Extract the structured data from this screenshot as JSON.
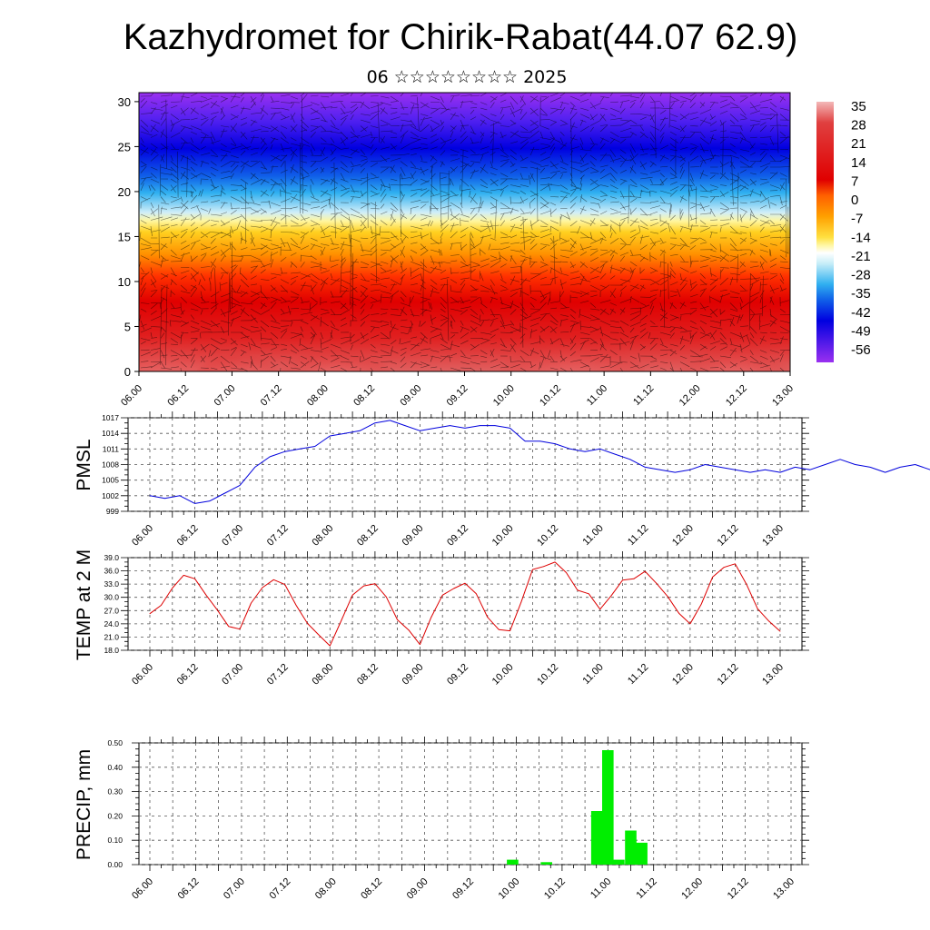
{
  "header": {
    "title": "Kazhydromet for Chirik-Rabat(44.07 62.9)",
    "subtitle": "06 ☆☆☆☆☆☆☆☆ 2025"
  },
  "colors": {
    "pmsl_line": "#0000dd",
    "temp_line": "#dd0000",
    "precip_bar": "#00ee00"
  },
  "x_tick_labels": [
    "06.00",
    "06.12",
    "07.00",
    "07.12",
    "08.00",
    "08.12",
    "09.00",
    "09.12",
    "10.00",
    "10.12",
    "11.00",
    "11.12",
    "12.00",
    "12.12",
    "13.00"
  ],
  "chart_data": [
    {
      "type": "heatmap",
      "ylim": [
        0,
        31
      ],
      "y_ticks": [
        "0",
        "5",
        "10",
        "15",
        "20",
        "25",
        "30"
      ],
      "colorbar": {
        "labels": [
          "35",
          "28",
          "21",
          "14",
          "7",
          "0",
          "-7",
          "-14",
          "-21",
          "-28",
          "-35",
          "-42",
          "-49",
          "-56"
        ]
      }
    },
    {
      "type": "line",
      "ylabel": "PMSL",
      "ylim": [
        999,
        1017
      ],
      "y_ticks": [
        "1017",
        "1014",
        "1011",
        "1008",
        "1005",
        "1002",
        "999"
      ],
      "x_steps": 3,
      "values": [
        1002,
        1001.5,
        1002,
        1000.5,
        1001,
        1002.5,
        1004,
        1007.5,
        1009.5,
        1010.5,
        1011,
        1011.5,
        1013.5,
        1014,
        1014.5,
        1016,
        1016.5,
        1015.5,
        1014.5,
        1015,
        1015.5,
        1015,
        1015.5,
        1015.5,
        1015,
        1012.5,
        1012.5,
        1012,
        1011,
        1010.5,
        1011,
        1010,
        1009,
        1007.5,
        1007,
        1006.5,
        1007,
        1008,
        1007.5,
        1007,
        1006.5,
        1007,
        1006.5,
        1007.5,
        1007,
        1008,
        1009,
        1008,
        1007.5,
        1006.5,
        1007.5,
        1008,
        1007,
        1007
      ]
    },
    {
      "type": "line",
      "ylabel": "TEMP at 2 M",
      "ylim": [
        18,
        39
      ],
      "y_ticks": [
        "39.0",
        "36.0",
        "33.0",
        "30.0",
        "27.0",
        "24.0",
        "21.0",
        "18.0"
      ],
      "values": [
        26.3,
        28.2,
        32.1,
        35,
        34.2,
        30.5,
        27.1,
        23.4,
        22.8,
        28.7,
        32.2,
        34,
        32.9,
        28.2,
        24.1,
        21.5,
        19,
        24.7,
        30.5,
        32.6,
        33.1,
        30.1,
        24.9,
        22.6,
        19.3,
        25.5,
        30.5,
        32,
        33.2,
        30.8,
        25.5,
        22.7,
        22.4,
        29,
        36.3,
        37,
        38,
        35.6,
        31.6,
        30.8,
        27.3,
        30.4,
        33.9,
        34.2,
        35.9,
        33.2,
        30.2,
        26.4,
        24,
        28.5,
        34.6,
        36.8,
        37.6,
        33,
        27.4,
        24.6,
        22.3
      ]
    },
    {
      "type": "bar",
      "ylabel": "PRECIP, mm",
      "ylim": [
        0,
        0.5
      ],
      "y_ticks": [
        "0.50",
        "0.40",
        "0.30",
        "0.20",
        "0.10",
        "0.00"
      ],
      "x": [
        9.96,
        10.33,
        10.88,
        11.0,
        11.12,
        11.25,
        11.37
      ],
      "values": [
        0.02,
        0.01,
        0.22,
        0.47,
        0.02,
        0.14,
        0.09
      ]
    }
  ]
}
